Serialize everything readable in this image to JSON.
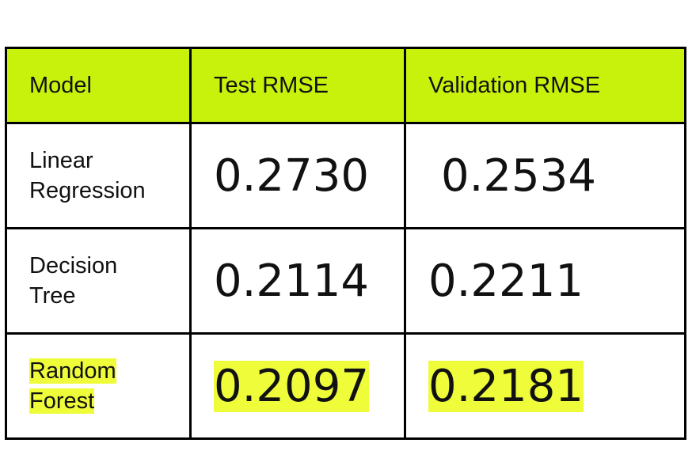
{
  "table": {
    "header": [
      "Model",
      "Test RMSE",
      "Validation RMSE"
    ],
    "rows": [
      [
        "Linear Regression",
        "0.2730",
        "0.2534"
      ],
      [
        "Decision Tree",
        "0.2114",
        "0.2211"
      ],
      [
        "Random Forest",
        "0.2097",
        "0.2181"
      ]
    ]
  }
}
